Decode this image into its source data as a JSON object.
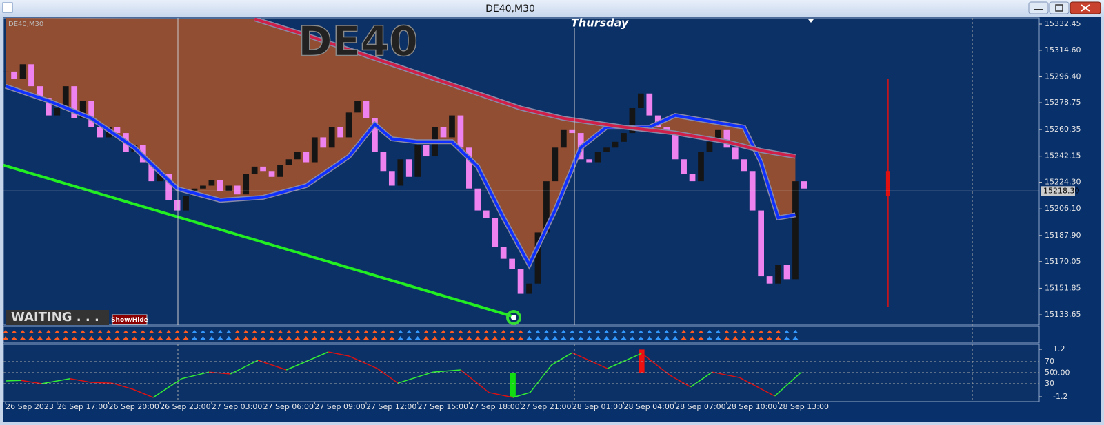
{
  "window_title": "DE40,M30",
  "chart_data": [
    {
      "type": "candlestick",
      "label": "DE40,M30",
      "title": "DE40",
      "day": "Thursday",
      "status": "WAITING . . .",
      "button": "Show/Hide",
      "closes": [
        15300,
        15295,
        15305,
        15290,
        15282,
        15270,
        15275,
        15290,
        15268,
        15280,
        15262,
        15255,
        15262,
        15258,
        15245,
        15250,
        15238,
        15225,
        15230,
        15212,
        15205,
        15215,
        15220,
        15222,
        15226,
        15218,
        15222,
        15216,
        15230,
        15235,
        15232,
        15228,
        15236,
        15240,
        15245,
        15238,
        15255,
        15248,
        15262,
        15255,
        15272,
        15280,
        15268,
        15245,
        15232,
        15222,
        15240,
        15228,
        15250,
        15242,
        15262,
        15255,
        15270,
        15248,
        15220,
        15205,
        15200,
        15180,
        15172,
        15165,
        15148,
        15155,
        15190,
        15225,
        15248,
        15260,
        15258,
        15240,
        15238,
        15245,
        15248,
        15252,
        15258,
        15275,
        15285,
        15270,
        15262,
        15258,
        15240,
        15230,
        15225,
        15245,
        15252,
        15260,
        15248,
        15240,
        15232,
        15205,
        15160,
        15155,
        15168,
        15158,
        15225,
        15220
      ],
      "color_up": "#151515",
      "color_down": "#ee82ee",
      "lines": [
        {
          "color": "#1030ff",
          "x": [
            0,
            5,
            10,
            15,
            20,
            25,
            30,
            35,
            40,
            43,
            45,
            48,
            52,
            55,
            58,
            61,
            64,
            67,
            70,
            75,
            78,
            82,
            86,
            88,
            90,
            92
          ],
          "values": [
            15290,
            15280,
            15268,
            15248,
            15220,
            15212,
            15214,
            15222,
            15242,
            15264,
            15254,
            15252,
            15252,
            15235,
            15200,
            15168,
            15205,
            15248,
            15262,
            15262,
            15270,
            15266,
            15262,
            15238,
            15200,
            15202
          ]
        },
        {
          "color": "#d0204a",
          "x": [
            29,
            35,
            45,
            55,
            60,
            65,
            72,
            78,
            84,
            88,
            92
          ],
          "values": [
            15336,
            15325,
            15305,
            15285,
            15275,
            15268,
            15262,
            15258,
            15252,
            15246,
            15242
          ]
        }
      ],
      "fill_color": "#a0522d",
      "trendline": {
        "color": "#22ee22",
        "x": [
          -0.25,
          59.4
        ],
        "values": [
          15236,
          15132
        ]
      },
      "marker": {
        "index": 102.8,
        "high": 15295,
        "low": 15139,
        "open": 15232,
        "close": 15215,
        "color": "#e01010"
      },
      "strip": [
        {
          "from": 0,
          "to": 21,
          "color": "#ff5a1f"
        },
        {
          "from": 22,
          "to": 26,
          "color": "#3399ff"
        },
        {
          "from": 27,
          "to": 45,
          "color": "#ff5a1f"
        },
        {
          "from": 46,
          "to": 48,
          "color": "#3399ff"
        },
        {
          "from": 49,
          "to": 60,
          "color": "#ff5a1f"
        },
        {
          "from": 61,
          "to": 78,
          "color": "#3399ff"
        },
        {
          "from": 79,
          "to": 81,
          "color": "#ff5a1f"
        },
        {
          "from": 82,
          "to": 83,
          "color": "#3399ff"
        },
        {
          "from": 84,
          "to": 90,
          "color": "#ff5a1f"
        },
        {
          "from": 91,
          "to": 92,
          "color": "#3399ff"
        }
      ],
      "current_price": {
        "value": 15218.3,
        "label": "15218.30"
      },
      "xlim": [
        -0.25,
        120.4
      ],
      "ylim": [
        15126.6,
        15336.7
      ],
      "yticks": [
        15332.45,
        {
          "value": 15314.6,
          "label": "15314.60"
        },
        {
          "value": 15296.4,
          "label": "15296.40"
        },
        15278.75,
        15260.35,
        15242.15,
        {
          "value": 15224.3,
          "label": "15224.30"
        },
        {
          "value": 15206.1,
          "label": "15206.10"
        },
        {
          "value": 15187.9,
          "label": "15187.90"
        },
        15170.05,
        15151.85,
        15133.65
      ],
      "xticks": [
        {
          "value": 0,
          "label": "26 Sep 2023"
        },
        {
          "value": 6,
          "label": "26 Sep 17:00"
        },
        {
          "value": 12,
          "label": "26 Sep 20:00"
        },
        {
          "value": 18,
          "label": "26 Sep 23:00"
        },
        {
          "value": 24,
          "label": "27 Sep 03:00"
        },
        {
          "value": 30,
          "label": "27 Sep 06:00"
        },
        {
          "value": 36,
          "label": "27 Sep 09:00"
        },
        {
          "value": 42,
          "label": "27 Sep 12:00"
        },
        {
          "value": 48,
          "label": "27 Sep 15:00"
        },
        {
          "value": 54,
          "label": "27 Sep 18:00"
        },
        {
          "value": 60,
          "label": "27 Sep 21:00"
        },
        {
          "value": 66,
          "label": "28 Sep 01:00"
        },
        {
          "value": 72,
          "label": "28 Sep 04:00"
        },
        {
          "value": 78,
          "label": "28 Sep 07:00"
        },
        {
          "value": 84,
          "label": "28 Sep 10:00"
        },
        {
          "value": 90,
          "label": "28 Sep 13:00"
        }
      ]
    },
    {
      "type": "line",
      "color_up": "#33ee33",
      "color_down": "#dd1111",
      "x": [
        0,
        1.8,
        4.2,
        7.5,
        9.9,
        12.4,
        14.8,
        17.2,
        20.5,
        23.7,
        26.2,
        29.4,
        32.7,
        37.6,
        40,
        43.3,
        45.7,
        49.8,
        53,
        56.3,
        59.1,
        61.1,
        63.6,
        66,
        70.1,
        74.1,
        77.4,
        79.8,
        82.3,
        85.5,
        89.6,
        92.7
      ],
      "values": [
        35,
        36,
        30,
        39,
        32.5,
        31,
        20,
        5,
        39,
        51,
        47.5,
        72.5,
        55,
        87.5,
        80,
        57.5,
        31,
        51,
        55,
        14,
        5,
        14,
        64,
        86,
        57.5,
        85,
        45,
        24,
        51,
        41,
        7.5,
        51
      ],
      "bars": [
        {
          "index": 59.1,
          "from": 50,
          "to": 5,
          "color": "#11dd11"
        },
        {
          "index": 74.1,
          "from": 50,
          "to": 92,
          "color": "#ee1111"
        }
      ],
      "ylim": [
        -2.5,
        101.25
      ],
      "yticks": [
        70,
        50,
        30
      ],
      "y2lim": [
        -1.443,
        1.443
      ],
      "y2ticks": [
        1.2,
        {
          "value": 0,
          "label": "0.00"
        },
        -1.2
      ]
    }
  ]
}
